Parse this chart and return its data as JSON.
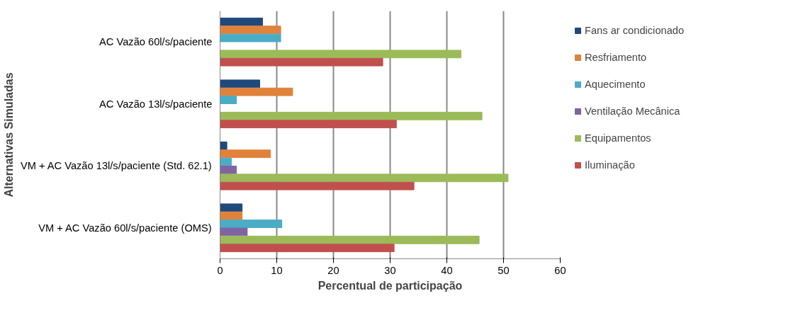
{
  "chart_data": {
    "type": "bar",
    "orientation": "horizontal",
    "xlabel": "Percentual de participação",
    "ylabel": "Alternativas Simuladas",
    "categories": [
      "AC Vazão 60l/s/paciente",
      "AC Vazão 13l/s/paciente",
      "VM + AC Vazão 13l/s/paciente (Std. 62.1)",
      "VM + AC Vazão 60l/s/paciente (OMS)"
    ],
    "series": [
      {
        "name": "Fans ar condicionado",
        "color": "#1f497d",
        "values": [
          7.5,
          7.0,
          1.2,
          3.9
        ]
      },
      {
        "name": "Resfriamento",
        "color": "#e0823a",
        "values": [
          10.7,
          12.8,
          8.9,
          3.9
        ]
      },
      {
        "name": "Aquecimento",
        "color": "#4bacc6",
        "values": [
          10.7,
          2.9,
          2.0,
          10.9
        ]
      },
      {
        "name": "Ventilação Mecânica",
        "color": "#8064a2",
        "values": [
          0,
          0,
          2.9,
          4.8
        ]
      },
      {
        "name": "Equipamentos",
        "color": "#9bbb59",
        "values": [
          42.5,
          46.2,
          50.8,
          45.7
        ]
      },
      {
        "name": "Iluminação",
        "color": "#c0504d",
        "values": [
          28.7,
          31.1,
          34.2,
          30.7
        ]
      }
    ],
    "xlim": [
      0,
      60
    ],
    "xticks": [
      0,
      10,
      20,
      30,
      40,
      50,
      60
    ],
    "grid": "x",
    "legend": "right"
  }
}
